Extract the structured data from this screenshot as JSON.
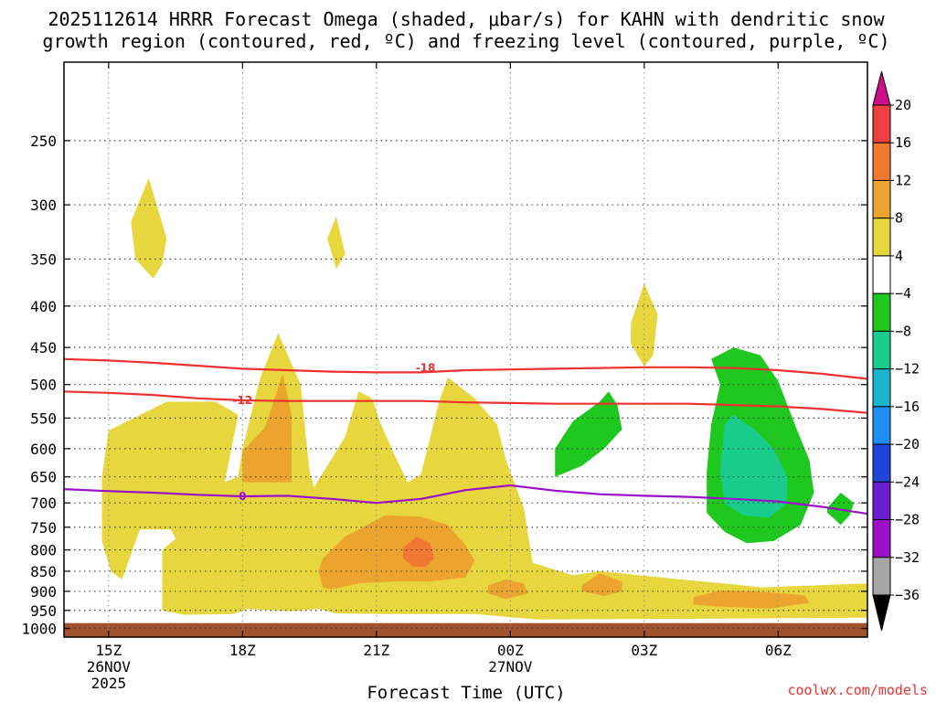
{
  "title": {
    "line1": "2025112614 HRRR Forecast Omega (shaded, μbar/s) for KAHN with dendritic snow",
    "line2": "growth region (contoured, red, ºC) and freezing level (contoured, purple, ºC)"
  },
  "credit": "coolwx.com/models",
  "colors": {
    "red_contour": "#ee3030",
    "purple_contour": "#9a10c8",
    "ground": "#a0522d",
    "grid": "#888888"
  },
  "chart_data": {
    "type": "heatmap",
    "subtype": "time-height cross section",
    "xlabel": "Forecast Time (UTC)",
    "ylabel": "",
    "x_ticks": [
      {
        "hours": 0,
        "label": "15Z",
        "sub1": "26NOV",
        "sub2": "2025"
      },
      {
        "hours": 3,
        "label": "18Z",
        "sub1": "",
        "sub2": ""
      },
      {
        "hours": 6,
        "label": "21Z",
        "sub1": "",
        "sub2": ""
      },
      {
        "hours": 9,
        "label": "00Z",
        "sub1": "27NOV",
        "sub2": ""
      },
      {
        "hours": 12,
        "label": "03Z",
        "sub1": "",
        "sub2": ""
      },
      {
        "hours": 15,
        "label": "06Z",
        "sub1": "",
        "sub2": ""
      }
    ],
    "x_range_hours": [
      -1,
      17
    ],
    "y_unit": "mb",
    "y_scale": "log-pressure (inverted)",
    "y_range_mb": [
      1025,
      200
    ],
    "y_ticks": [
      250,
      300,
      350,
      400,
      450,
      500,
      550,
      600,
      650,
      700,
      750,
      800,
      850,
      900,
      950,
      1000
    ],
    "colorbar": {
      "unit": "μbar/s",
      "levels": [
        20,
        16,
        12,
        8,
        4,
        -4,
        -8,
        -12,
        -16,
        -20,
        -24,
        -28,
        -32,
        -36
      ],
      "bins": [
        {
          "color": "#cc1188",
          "range": ">20"
        },
        {
          "color": "#ee4040",
          "range": "16 to 20"
        },
        {
          "color": "#f07832",
          "range": "12 to 16"
        },
        {
          "color": "#eba42e",
          "range": "8 to 12"
        },
        {
          "color": "#e8d63e",
          "range": "4 to 8"
        },
        {
          "color": "#ffffff",
          "range": "-4 to 4"
        },
        {
          "color": "#1ec81e",
          "range": "-8 to -4"
        },
        {
          "color": "#19cc8e",
          "range": "-12 to -8"
        },
        {
          "color": "#1ab4cc",
          "range": "-16 to -12"
        },
        {
          "color": "#1e8ef0",
          "range": "-20 to -16"
        },
        {
          "color": "#2045d8",
          "range": "-24 to -20"
        },
        {
          "color": "#6a1ed0",
          "range": "-28 to -24"
        },
        {
          "color": "#9a10c8",
          "range": "-32 to -28"
        },
        {
          "color": "#a6a6a6",
          "range": "-36 to -32"
        },
        {
          "color": "#000000",
          "range": "<-36"
        }
      ]
    },
    "shaded_regions": [
      {
        "bin": "4 to 8",
        "color": "#e8d63e",
        "points": [
          [
            -0.15,
            650
          ],
          [
            0,
            570
          ],
          [
            1.3,
            525
          ],
          [
            2.4,
            525
          ],
          [
            2.9,
            545
          ],
          [
            2.6,
            660
          ],
          [
            2.9,
            650
          ],
          [
            3.0,
            600
          ],
          [
            3.4,
            490
          ],
          [
            3.8,
            432
          ],
          [
            4.3,
            500
          ],
          [
            4.5,
            640
          ],
          [
            4.6,
            670
          ],
          [
            5.3,
            580
          ],
          [
            5.6,
            510
          ],
          [
            5.9,
            520
          ],
          [
            6.1,
            560
          ],
          [
            6.4,
            610
          ],
          [
            6.7,
            660
          ],
          [
            7.0,
            645
          ],
          [
            7.4,
            525
          ],
          [
            7.6,
            490
          ],
          [
            8.2,
            520
          ],
          [
            8.7,
            560
          ],
          [
            8.9,
            620
          ],
          [
            9.3,
            710
          ],
          [
            9.5,
            830
          ],
          [
            10.4,
            860
          ],
          [
            11.0,
            850
          ],
          [
            12.8,
            870
          ],
          [
            14.0,
            882
          ],
          [
            14.6,
            890
          ],
          [
            17,
            880
          ],
          [
            17,
            970
          ],
          [
            9.6,
            975
          ],
          [
            8.2,
            960
          ],
          [
            6.2,
            960
          ],
          [
            5.1,
            958
          ],
          [
            4.7,
            946
          ],
          [
            4.1,
            952
          ],
          [
            3.1,
            946
          ],
          [
            2.8,
            960
          ],
          [
            1.7,
            962
          ],
          [
            1.2,
            950
          ],
          [
            1.2,
            860
          ],
          [
            1.2,
            800
          ],
          [
            1.5,
            775
          ],
          [
            1.4,
            755
          ],
          [
            0.7,
            755
          ],
          [
            0.3,
            870
          ],
          [
            0.05,
            850
          ],
          [
            -0.15,
            780
          ]
        ]
      },
      {
        "bin": "4 to 8",
        "color": "#e8d63e",
        "points": [
          [
            0.5,
            315
          ],
          [
            0.9,
            278
          ],
          [
            1.3,
            330
          ],
          [
            1.2,
            355
          ],
          [
            1.0,
            370
          ],
          [
            0.6,
            350
          ]
        ]
      },
      {
        "bin": "4 to 8",
        "color": "#e8d63e",
        "points": [
          [
            4.9,
            330
          ],
          [
            5.1,
            310
          ],
          [
            5.3,
            345
          ],
          [
            5.1,
            360
          ]
        ]
      },
      {
        "bin": "4 to 8",
        "color": "#e8d63e",
        "points": [
          [
            11.7,
            420
          ],
          [
            12.0,
            375
          ],
          [
            12.3,
            410
          ],
          [
            12.2,
            460
          ],
          [
            12.0,
            475
          ],
          [
            11.7,
            445
          ]
        ]
      },
      {
        "bin": "8 to 12",
        "color": "#eba42e",
        "points": [
          [
            3.0,
            605
          ],
          [
            3.5,
            565
          ],
          [
            3.9,
            485
          ],
          [
            4.1,
            545
          ],
          [
            4.1,
            660
          ],
          [
            3.0,
            660
          ]
        ]
      },
      {
        "bin": "8 to 12",
        "color": "#eba42e",
        "points": [
          [
            4.8,
            820
          ],
          [
            5.3,
            770
          ],
          [
            6.2,
            725
          ],
          [
            7.0,
            728
          ],
          [
            7.6,
            745
          ],
          [
            8.0,
            790
          ],
          [
            8.2,
            825
          ],
          [
            8.0,
            865
          ],
          [
            7.2,
            875
          ],
          [
            6.4,
            875
          ],
          [
            5.6,
            880
          ],
          [
            5.0,
            895
          ],
          [
            4.8,
            890
          ],
          [
            4.7,
            850
          ]
        ]
      },
      {
        "bin": "12 to 16",
        "color": "#f07832",
        "points": [
          [
            6.6,
            795
          ],
          [
            6.9,
            770
          ],
          [
            7.2,
            785
          ],
          [
            7.3,
            820
          ],
          [
            7.1,
            840
          ],
          [
            6.8,
            838
          ],
          [
            6.6,
            820
          ]
        ]
      },
      {
        "bin": "8 to 12",
        "color": "#eba42e",
        "points": [
          [
            8.5,
            885
          ],
          [
            8.9,
            870
          ],
          [
            9.3,
            880
          ],
          [
            9.4,
            905
          ],
          [
            8.9,
            920
          ],
          [
            8.5,
            905
          ]
        ]
      },
      {
        "bin": "8 to 12",
        "color": "#eba42e",
        "points": [
          [
            10.6,
            885
          ],
          [
            11.0,
            855
          ],
          [
            11.5,
            875
          ],
          [
            11.5,
            900
          ],
          [
            11.1,
            912
          ],
          [
            10.6,
            900
          ]
        ]
      },
      {
        "bin": "8 to 12",
        "color": "#eba42e",
        "points": [
          [
            13.1,
            915
          ],
          [
            13.7,
            898
          ],
          [
            14.5,
            900
          ],
          [
            15.6,
            910
          ],
          [
            15.7,
            930
          ],
          [
            14.8,
            945
          ],
          [
            13.7,
            940
          ],
          [
            13.1,
            935
          ]
        ]
      },
      {
        "bin": "-8 to -4",
        "color": "#1ec81e",
        "points": [
          [
            10.0,
            600
          ],
          [
            10.4,
            555
          ],
          [
            11.0,
            525
          ],
          [
            11.2,
            510
          ],
          [
            11.4,
            530
          ],
          [
            11.5,
            568
          ],
          [
            11.1,
            600
          ],
          [
            10.6,
            630
          ],
          [
            10.0,
            650
          ]
        ]
      },
      {
        "bin": "-8 to -4",
        "color": "#1ec81e",
        "points": [
          [
            13.5,
            465
          ],
          [
            14.0,
            450
          ],
          [
            14.6,
            460
          ],
          [
            15.0,
            495
          ],
          [
            15.4,
            565
          ],
          [
            15.7,
            620
          ],
          [
            15.8,
            680
          ],
          [
            15.5,
            745
          ],
          [
            14.9,
            780
          ],
          [
            14.3,
            785
          ],
          [
            13.8,
            760
          ],
          [
            13.4,
            720
          ],
          [
            13.4,
            640
          ],
          [
            13.5,
            560
          ],
          [
            13.7,
            500
          ]
        ]
      },
      {
        "bin": "-12 to -8",
        "color": "#19cc8e",
        "points": [
          [
            13.8,
            560
          ],
          [
            14.0,
            545
          ],
          [
            14.5,
            570
          ],
          [
            14.9,
            600
          ],
          [
            15.2,
            650
          ],
          [
            15.2,
            700
          ],
          [
            14.8,
            730
          ],
          [
            14.2,
            725
          ],
          [
            13.8,
            700
          ],
          [
            13.7,
            640
          ]
        ]
      },
      {
        "bin": "-8 to -4",
        "color": "#1ec81e",
        "points": [
          [
            16.1,
            710
          ],
          [
            16.4,
            680
          ],
          [
            16.7,
            700
          ],
          [
            16.6,
            725
          ],
          [
            16.4,
            745
          ],
          [
            16.1,
            720
          ]
        ]
      }
    ],
    "contour_lines": [
      {
        "name": "-18",
        "color": "#ee3030",
        "label_at": [
          7.1,
          477
        ],
        "points": [
          [
            -1,
            465
          ],
          [
            0,
            467
          ],
          [
            1,
            470
          ],
          [
            2,
            474
          ],
          [
            3,
            478
          ],
          [
            4,
            480
          ],
          [
            5,
            482
          ],
          [
            6,
            483
          ],
          [
            7,
            483
          ],
          [
            8,
            480
          ],
          [
            9,
            479
          ],
          [
            10,
            478
          ],
          [
            11,
            477
          ],
          [
            12,
            476
          ],
          [
            13,
            476
          ],
          [
            14,
            477
          ],
          [
            15,
            480
          ],
          [
            16,
            485
          ],
          [
            17,
            492
          ]
        ]
      },
      {
        "name": "-12",
        "color": "#ee3030",
        "label_at": [
          3.0,
          523
        ],
        "points": [
          [
            -1,
            510
          ],
          [
            0,
            512
          ],
          [
            1,
            515
          ],
          [
            2,
            520
          ],
          [
            3,
            523
          ],
          [
            4,
            524
          ],
          [
            5,
            524
          ],
          [
            6,
            524
          ],
          [
            7,
            524
          ],
          [
            8,
            526
          ],
          [
            9,
            527
          ],
          [
            10,
            528
          ],
          [
            11,
            528
          ],
          [
            12,
            528
          ],
          [
            13,
            528
          ],
          [
            14,
            530
          ],
          [
            15,
            532
          ],
          [
            16,
            536
          ],
          [
            17,
            542
          ]
        ]
      },
      {
        "name": "0",
        "color": "#9a10c8",
        "label_at": [
          3.0,
          687
        ],
        "points": [
          [
            -1,
            673
          ],
          [
            0,
            677
          ],
          [
            1,
            680
          ],
          [
            2,
            684
          ],
          [
            3,
            687
          ],
          [
            4,
            686
          ],
          [
            5,
            692
          ],
          [
            6,
            700
          ],
          [
            7,
            692
          ],
          [
            8,
            675
          ],
          [
            9,
            666
          ],
          [
            10,
            676
          ],
          [
            11,
            683
          ],
          [
            12,
            686
          ],
          [
            13,
            688
          ],
          [
            14,
            692
          ],
          [
            15,
            697
          ],
          [
            16,
            708
          ],
          [
            17,
            722
          ]
        ]
      }
    ],
    "ground_mb": [
      985,
      1025
    ]
  }
}
